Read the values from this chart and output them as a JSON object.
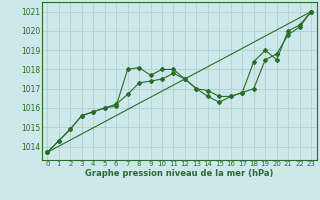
{
  "title": "Graphe pression niveau de la mer (hPa)",
  "bg_color": "#cce8e8",
  "grid_color": "#aacccc",
  "line_color": "#2d6a2d",
  "xlim": [
    -0.5,
    23.5
  ],
  "ylim": [
    1013.3,
    1021.5
  ],
  "yticks": [
    1014,
    1015,
    1016,
    1017,
    1018,
    1019,
    1020,
    1021
  ],
  "xticks": [
    0,
    1,
    2,
    3,
    4,
    5,
    6,
    7,
    8,
    9,
    10,
    11,
    12,
    13,
    14,
    15,
    16,
    17,
    18,
    19,
    20,
    21,
    22,
    23
  ],
  "series1_x": [
    0,
    1,
    2,
    3,
    4,
    5,
    6,
    7,
    8,
    9,
    10,
    11,
    12,
    13,
    14,
    15,
    16,
    17,
    18,
    19,
    20,
    21,
    22,
    23
  ],
  "series1_y": [
    1013.7,
    1014.3,
    1014.9,
    1015.6,
    1015.8,
    1016.0,
    1016.1,
    1018.0,
    1018.1,
    1017.7,
    1018.0,
    1018.0,
    1017.5,
    1017.0,
    1016.9,
    1016.6,
    1016.6,
    1016.8,
    1018.4,
    1019.0,
    1018.5,
    1020.0,
    1020.3,
    1021.0
  ],
  "series2_x": [
    0,
    1,
    2,
    3,
    4,
    5,
    6,
    7,
    8,
    9,
    10,
    11,
    12,
    13,
    14,
    15,
    16,
    17,
    18,
    19,
    20,
    21,
    22,
    23
  ],
  "series2_y": [
    1013.7,
    1014.3,
    1014.9,
    1015.6,
    1015.8,
    1016.0,
    1016.2,
    1016.7,
    1017.3,
    1017.4,
    1017.5,
    1017.8,
    1017.5,
    1017.0,
    1016.6,
    1016.3,
    1016.6,
    1016.8,
    1017.0,
    1018.5,
    1018.8,
    1019.8,
    1020.2,
    1021.0
  ],
  "series3_x": [
    0,
    23
  ],
  "series3_y": [
    1013.7,
    1021.0
  ]
}
